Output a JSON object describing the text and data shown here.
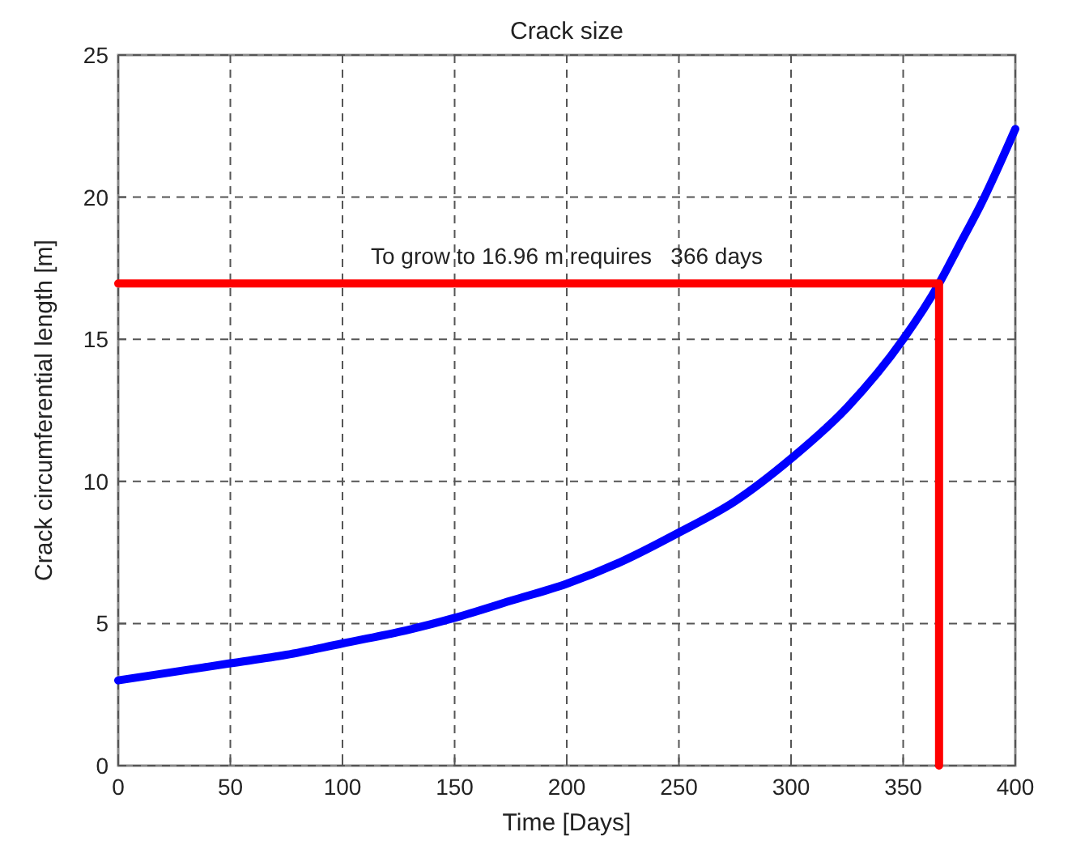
{
  "chart_data": {
    "type": "line",
    "title": "Crack size",
    "xlabel": "Time [Days]",
    "ylabel": "Crack circumferential length [m]",
    "xlim": [
      0,
      400
    ],
    "xticks": [
      0,
      50,
      100,
      150,
      200,
      250,
      300,
      350,
      400
    ],
    "ylim": [
      0,
      25
    ],
    "yticks": [
      0,
      5,
      10,
      15,
      20,
      25
    ],
    "grid": true,
    "annotations": [
      {
        "text": "To grow to 16.96 m requires   366 days",
        "x": 200,
        "y": 16.96
      }
    ],
    "series": [
      {
        "color": "#0000ff",
        "x": [
          0,
          25,
          50,
          75,
          100,
          125,
          150,
          175,
          200,
          225,
          250,
          275,
          300,
          325,
          350,
          366,
          375,
          385,
          400
        ],
        "values": [
          3.0,
          3.3,
          3.6,
          3.9,
          4.3,
          4.7,
          5.2,
          5.8,
          6.4,
          7.2,
          8.2,
          9.3,
          10.8,
          12.6,
          15.0,
          16.96,
          18.3,
          19.8,
          22.4
        ]
      },
      {
        "color": "#ff0000",
        "x": [
          0,
          366,
          366
        ],
        "values": [
          16.96,
          16.96,
          0
        ]
      }
    ]
  }
}
